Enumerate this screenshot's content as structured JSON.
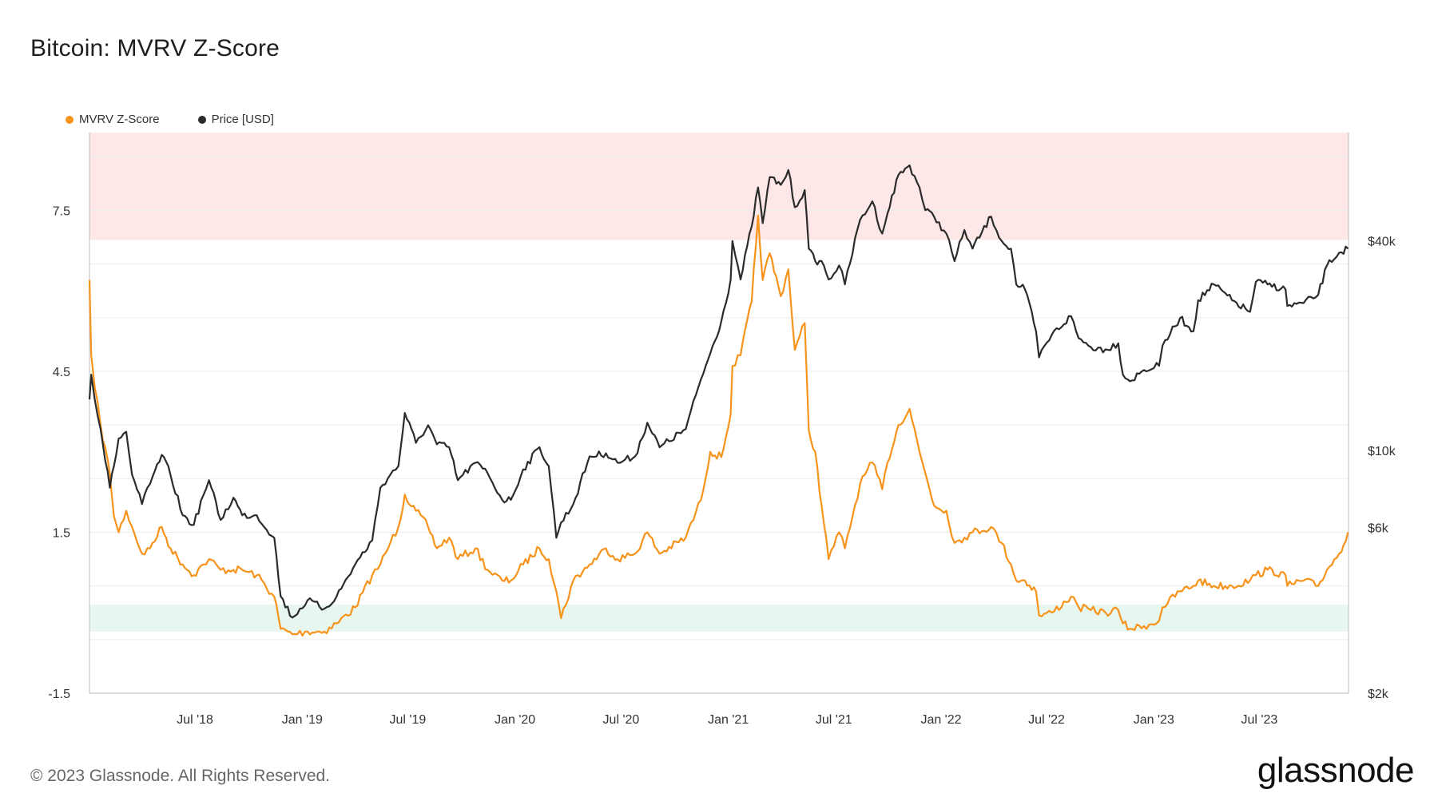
{
  "title": "Bitcoin: MVRV Z-Score",
  "footer": "© 2023 Glassnode. All Rights Reserved.",
  "brand": "glassnode",
  "colors": {
    "zscore": "#f7931a",
    "price": "#2b2b2b",
    "sell_zone": "#fde7e7",
    "buy_zone": "#e7f6ee"
  },
  "chart_data": {
    "type": "line",
    "title": "Bitcoin: MVRV Z-Score",
    "legend": {
      "placement": "top-left",
      "entries": [
        "MVRV Z-Score",
        "Price [USD]"
      ]
    },
    "grid": true,
    "x_ticks": [
      "Jul '18",
      "Jan '19",
      "Jul '19",
      "Jan '20",
      "Jul '20",
      "Jan '21",
      "Jul '21",
      "Jan '22",
      "Jul '22",
      "Jan '23",
      "Jul '23"
    ],
    "y_left": {
      "ticks": [
        "7.5",
        "4.5",
        "1.5",
        "-1.5"
      ],
      "range": [
        -1.5,
        8.95
      ]
    },
    "y_right": {
      "scale": "log",
      "ticks": [
        "$40k",
        "$10k",
        "$6k",
        "$2k"
      ],
      "range": [
        2000,
        82000
      ]
    },
    "bands": [
      {
        "name": "high",
        "axis": "left",
        "from": 6.95,
        "to": 8.95
      },
      {
        "name": "low",
        "axis": "left",
        "from": -0.35,
        "to": 0.15
      }
    ],
    "x_range": [
      "2018-01-01",
      "2023-12-01"
    ],
    "series": [
      {
        "name": "MVRV Z-Score",
        "axis": "left",
        "x": [
          "2018-01-01",
          "2018-01-04",
          "2018-01-10",
          "2018-01-20",
          "2018-02-05",
          "2018-02-12",
          "2018-02-20",
          "2018-03-05",
          "2018-03-15",
          "2018-04-01",
          "2018-04-15",
          "2018-05-05",
          "2018-05-20",
          "2018-06-10",
          "2018-06-29",
          "2018-07-15",
          "2018-07-25",
          "2018-08-14",
          "2018-09-05",
          "2018-09-20",
          "2018-10-15",
          "2018-11-14",
          "2018-11-25",
          "2018-12-15",
          "2019-01-10",
          "2019-02-08",
          "2019-03-01",
          "2019-04-02",
          "2019-05-01",
          "2019-05-15",
          "2019-06-01",
          "2019-06-15",
          "2019-06-26",
          "2019-07-15",
          "2019-08-05",
          "2019-08-20",
          "2019-09-10",
          "2019-09-25",
          "2019-10-25",
          "2019-11-15",
          "2019-12-10",
          "2019-12-25",
          "2020-01-15",
          "2020-02-12",
          "2020-02-28",
          "2020-03-12",
          "2020-03-20",
          "2020-04-10",
          "2020-05-08",
          "2020-06-05",
          "2020-06-25",
          "2020-07-25",
          "2020-08-15",
          "2020-09-05",
          "2020-10-20",
          "2020-11-15",
          "2020-12-01",
          "2020-12-20",
          "2021-01-05",
          "2021-01-08",
          "2021-01-22",
          "2021-02-10",
          "2021-02-21",
          "2021-03-01",
          "2021-03-13",
          "2021-04-01",
          "2021-04-14",
          "2021-04-25",
          "2021-05-12",
          "2021-05-19",
          "2021-05-30",
          "2021-06-10",
          "2021-06-22",
          "2021-07-10",
          "2021-07-20",
          "2021-08-15",
          "2021-09-05",
          "2021-09-22",
          "2021-10-01",
          "2021-10-20",
          "2021-11-08",
          "2021-11-25",
          "2021-12-05",
          "2021-12-20",
          "2022-01-10",
          "2022-01-24",
          "2022-02-10",
          "2022-02-24",
          "2022-03-28",
          "2022-04-15",
          "2022-05-01",
          "2022-05-10",
          "2022-05-25",
          "2022-06-13",
          "2022-06-18",
          "2022-07-10",
          "2022-08-12",
          "2022-08-25",
          "2022-09-15",
          "2022-10-10",
          "2022-11-01",
          "2022-11-09",
          "2022-11-21",
          "2022-12-15",
          "2023-01-10",
          "2023-01-16",
          "2023-02-15",
          "2023-03-10",
          "2023-03-18",
          "2023-04-14",
          "2023-05-15",
          "2023-06-15",
          "2023-06-25",
          "2023-07-15",
          "2023-08-15",
          "2023-08-18",
          "2023-09-15",
          "2023-10-10",
          "2023-10-25",
          "2023-11-15",
          "2023-11-30"
        ],
        "values": [
          6.2,
          4.8,
          4.2,
          3.5,
          2.6,
          1.8,
          1.5,
          1.9,
          1.6,
          1.1,
          1.2,
          1.6,
          1.2,
          0.9,
          0.7,
          0.9,
          1.0,
          0.8,
          0.8,
          0.8,
          0.7,
          0.3,
          -0.3,
          -0.4,
          -0.35,
          -0.35,
          -0.2,
          0.1,
          0.7,
          0.9,
          1.3,
          1.6,
          2.2,
          1.9,
          1.6,
          1.2,
          1.4,
          1.0,
          1.2,
          0.8,
          0.6,
          0.6,
          0.9,
          1.2,
          1.0,
          0.4,
          -0.1,
          0.6,
          0.9,
          1.2,
          1.0,
          1.1,
          1.5,
          1.1,
          1.4,
          2.1,
          3.0,
          2.9,
          3.7,
          4.6,
          4.8,
          5.8,
          7.4,
          6.2,
          6.7,
          5.9,
          6.4,
          4.9,
          5.4,
          3.4,
          3.0,
          2.0,
          1.0,
          1.5,
          1.2,
          2.4,
          2.8,
          2.3,
          2.8,
          3.5,
          3.8,
          3.0,
          2.6,
          2.0,
          1.9,
          1.3,
          1.4,
          1.5,
          1.6,
          1.3,
          0.9,
          0.6,
          0.6,
          0.4,
          -0.05,
          0.0,
          0.3,
          0.1,
          0.05,
          0.0,
          0.05,
          -0.2,
          -0.3,
          -0.25,
          -0.15,
          0.1,
          0.4,
          0.5,
          0.6,
          0.5,
          0.5,
          0.6,
          0.7,
          0.8,
          0.7,
          0.5,
          0.6,
          0.5,
          0.8,
          1.1,
          1.5
        ]
      },
      {
        "name": "Price [USD]",
        "axis": "right",
        "x": [
          "2018-01-01",
          "2018-01-04",
          "2018-01-10",
          "2018-01-20",
          "2018-02-05",
          "2018-02-12",
          "2018-02-20",
          "2018-03-05",
          "2018-03-15",
          "2018-04-01",
          "2018-04-15",
          "2018-05-05",
          "2018-05-20",
          "2018-06-10",
          "2018-06-29",
          "2018-07-15",
          "2018-07-25",
          "2018-08-14",
          "2018-09-05",
          "2018-09-20",
          "2018-10-15",
          "2018-11-14",
          "2018-11-25",
          "2018-12-15",
          "2019-01-10",
          "2019-02-08",
          "2019-03-01",
          "2019-04-02",
          "2019-05-01",
          "2019-05-15",
          "2019-06-01",
          "2019-06-15",
          "2019-06-26",
          "2019-07-15",
          "2019-08-05",
          "2019-08-20",
          "2019-09-10",
          "2019-09-25",
          "2019-10-25",
          "2019-11-15",
          "2019-12-10",
          "2019-12-25",
          "2020-01-15",
          "2020-02-12",
          "2020-02-28",
          "2020-03-12",
          "2020-03-20",
          "2020-04-10",
          "2020-05-08",
          "2020-06-05",
          "2020-06-25",
          "2020-07-25",
          "2020-08-15",
          "2020-09-05",
          "2020-10-20",
          "2020-11-15",
          "2020-12-01",
          "2020-12-20",
          "2021-01-05",
          "2021-01-08",
          "2021-01-22",
          "2021-02-10",
          "2021-02-21",
          "2021-03-01",
          "2021-03-13",
          "2021-04-01",
          "2021-04-14",
          "2021-04-25",
          "2021-05-12",
          "2021-05-19",
          "2021-05-30",
          "2021-06-10",
          "2021-06-22",
          "2021-07-10",
          "2021-07-20",
          "2021-08-15",
          "2021-09-05",
          "2021-09-22",
          "2021-10-01",
          "2021-10-20",
          "2021-11-08",
          "2021-11-25",
          "2021-12-05",
          "2021-12-20",
          "2022-01-10",
          "2022-01-24",
          "2022-02-10",
          "2022-02-24",
          "2022-03-28",
          "2022-04-15",
          "2022-05-01",
          "2022-05-10",
          "2022-05-25",
          "2022-06-13",
          "2022-06-18",
          "2022-07-10",
          "2022-08-12",
          "2022-08-25",
          "2022-09-15",
          "2022-10-10",
          "2022-11-01",
          "2022-11-09",
          "2022-11-21",
          "2022-12-15",
          "2023-01-10",
          "2023-01-16",
          "2023-02-15",
          "2023-03-10",
          "2023-03-18",
          "2023-04-14",
          "2023-05-15",
          "2023-06-15",
          "2023-06-25",
          "2023-07-15",
          "2023-08-15",
          "2023-08-18",
          "2023-09-15",
          "2023-10-10",
          "2023-10-25",
          "2023-11-15",
          "2023-11-30"
        ],
        "values": [
          14000,
          16500,
          14000,
          11500,
          7800,
          9000,
          10800,
          11300,
          8500,
          7000,
          8000,
          9700,
          8500,
          6500,
          6100,
          7400,
          8200,
          6300,
          7300,
          6500,
          6500,
          5600,
          3800,
          3300,
          3700,
          3500,
          3800,
          4700,
          5500,
          7800,
          8500,
          9000,
          12800,
          10500,
          11800,
          10400,
          10200,
          8200,
          9200,
          8600,
          7200,
          7200,
          8800,
          10200,
          9000,
          5600,
          6200,
          7000,
          9600,
          9800,
          9200,
          9600,
          12000,
          10200,
          11500,
          16000,
          19000,
          23500,
          31000,
          40000,
          31000,
          44000,
          57000,
          45000,
          61000,
          58000,
          64000,
          50000,
          56000,
          38000,
          35000,
          35000,
          31000,
          34000,
          30000,
          46000,
          52000,
          42000,
          48000,
          62000,
          66000,
          57000,
          49000,
          47000,
          42000,
          35000,
          43000,
          38000,
          47000,
          40000,
          38000,
          30000,
          29000,
          22000,
          18500,
          21500,
          24300,
          21000,
          19800,
          19500,
          20300,
          16500,
          15800,
          17000,
          17500,
          20000,
          24000,
          22000,
          27000,
          30000,
          27000,
          25000,
          30500,
          30000,
          29000,
          26000,
          26500,
          28000,
          34000,
          37000,
          38000
        ]
      }
    ]
  }
}
